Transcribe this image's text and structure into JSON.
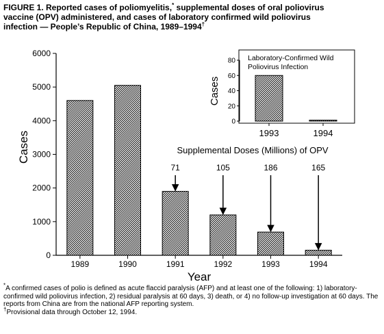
{
  "figure": {
    "title_line1_pre": "FIGURE 1. Reported cases of poliomyelitis,",
    "title_mark1": "*",
    "title_line1_post": " supplemental doses of oral poliovirus",
    "title_line2": "vaccine (OPV) administered, and cases of laboratory confirmed wild poliovirus",
    "title_line3_pre": "infection — People’s Republic of China, 1989–1994",
    "title_mark2": "†"
  },
  "chart_data": [
    {
      "type": "bar",
      "title": "",
      "categories": [
        "1989",
        "1990",
        "1991",
        "1992",
        "1993",
        "1994"
      ],
      "values": [
        4600,
        5050,
        1900,
        1200,
        690,
        150
      ],
      "xlabel": "Year",
      "ylabel": "Cases",
      "ylim": [
        0,
        6000
      ],
      "yticks": [
        "0",
        "1000",
        "2000",
        "3000",
        "4000",
        "5000",
        "6000"
      ],
      "grid": false,
      "bar_fill": "#444444",
      "annotation": {
        "heading": "Supplemental Doses (Millions) of OPV",
        "doses": [
          {
            "category": "1991",
            "label": "71"
          },
          {
            "category": "1992",
            "label": "105"
          },
          {
            "category": "1993",
            "label": "186"
          },
          {
            "category": "1994",
            "label": "165"
          }
        ]
      }
    },
    {
      "type": "bar",
      "title": "Laboratory-Confirmed Wild Poliovirus Infection",
      "title_lines": [
        "Laboratory-Confirmed Wild",
        "Poliovirus Infection"
      ],
      "categories": [
        "1993",
        "1994"
      ],
      "values": [
        60,
        1
      ],
      "ylabel": "Cases",
      "ylim": [
        0,
        80
      ],
      "yticks": [
        "0",
        "20",
        "40",
        "60",
        "80"
      ],
      "grid": false
    }
  ],
  "footnotes": {
    "mark1": "*",
    "note1": "A confirmed cases of polio is defined as acute flaccid paralysis (AFP) and at least one of the following: 1) laboratory-confirmed wild poliovirus infection, 2) residual paralysis at 60 days, 3) death, or 4) no follow-up investigation at 60 days. The reports from China are from the national AFP reporting system.",
    "mark2": "†",
    "note2": "Provisional data through October 12, 1994."
  }
}
